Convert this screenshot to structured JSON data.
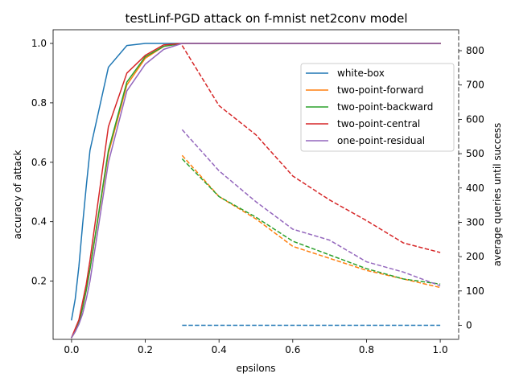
{
  "chart_data": {
    "type": "line",
    "title": "testLinf-PGD attack on f-mnist net2conv model",
    "xlabel": "epsilons",
    "ylabel": "accuracy of attack",
    "y2label": "average queries until success",
    "xlim": [
      -0.05,
      1.05
    ],
    "ylim": [
      0.004,
      1.046
    ],
    "y2lim": [
      -41,
      861
    ],
    "xticks": [
      "0.0",
      "0.2",
      "0.4",
      "0.6",
      "0.8",
      "1.0"
    ],
    "xtick_values": [
      0.0,
      0.2,
      0.4,
      0.6,
      0.8,
      1.0
    ],
    "yticks": [
      "0.2",
      "0.4",
      "0.6",
      "0.8",
      "1.0"
    ],
    "ytick_values": [
      0.2,
      0.4,
      0.6,
      0.8,
      1.0
    ],
    "y2ticks": [
      "0",
      "100",
      "200",
      "300",
      "400",
      "500",
      "600",
      "700",
      "800"
    ],
    "y2tick_values": [
      0,
      100,
      200,
      300,
      400,
      500,
      600,
      700,
      800
    ],
    "grid": false,
    "legend_position": "upper-right",
    "series": [
      {
        "name": "white-box",
        "color": "#1f77b4",
        "accuracy": {
          "x": [
            0.0,
            0.01,
            0.02,
            0.03,
            0.04,
            0.05,
            0.1,
            0.15,
            0.2,
            0.25,
            0.3,
            0.4,
            0.5,
            0.6,
            0.7,
            0.8,
            0.9,
            1.0
          ],
          "y": [
            0.07,
            0.14,
            0.25,
            0.39,
            0.52,
            0.64,
            0.92,
            0.993,
            1.0,
            1.0,
            1.0,
            1.0,
            1.0,
            1.0,
            1.0,
            1.0,
            1.0,
            1.0
          ]
        },
        "queries": {
          "x": [
            0.3,
            0.4,
            0.5,
            0.6,
            0.7,
            0.8,
            0.9,
            1.0
          ],
          "y": [
            0,
            0,
            0,
            0,
            0,
            0,
            0,
            0
          ]
        }
      },
      {
        "name": "two-point-forward",
        "color": "#ff7f0e",
        "accuracy": {
          "x": [
            0.0,
            0.01,
            0.02,
            0.03,
            0.04,
            0.05,
            0.1,
            0.15,
            0.2,
            0.25,
            0.3,
            0.4,
            0.5,
            0.6,
            0.7,
            0.8,
            0.9,
            1.0
          ],
          "y": [
            0.01,
            0.03,
            0.06,
            0.11,
            0.17,
            0.24,
            0.63,
            0.86,
            0.95,
            0.99,
            1.0,
            1.0,
            1.0,
            1.0,
            1.0,
            1.0,
            1.0,
            1.0
          ]
        },
        "queries": {
          "x": [
            0.3,
            0.4,
            0.5,
            0.6,
            0.7,
            0.8,
            0.9,
            1.0
          ],
          "y": [
            495,
            375,
            310,
            230,
            195,
            160,
            135,
            110
          ]
        }
      },
      {
        "name": "two-point-backward",
        "color": "#2ca02c",
        "accuracy": {
          "x": [
            0.0,
            0.01,
            0.02,
            0.03,
            0.04,
            0.05,
            0.1,
            0.15,
            0.2,
            0.25,
            0.3,
            0.4,
            0.5,
            0.6,
            0.7,
            0.8,
            0.9,
            1.0
          ],
          "y": [
            0.01,
            0.03,
            0.06,
            0.11,
            0.17,
            0.24,
            0.64,
            0.87,
            0.955,
            0.99,
            1.0,
            1.0,
            1.0,
            1.0,
            1.0,
            1.0,
            1.0,
            1.0
          ]
        },
        "queries": {
          "x": [
            0.3,
            0.4,
            0.5,
            0.6,
            0.7,
            0.8,
            0.9,
            1.0
          ],
          "y": [
            485,
            375,
            315,
            245,
            205,
            165,
            135,
            120
          ]
        }
      },
      {
        "name": "two-point-central",
        "color": "#d62728",
        "accuracy": {
          "x": [
            0.0,
            0.01,
            0.02,
            0.03,
            0.04,
            0.05,
            0.1,
            0.15,
            0.2,
            0.25,
            0.3,
            0.4,
            0.5,
            0.6,
            0.7,
            0.8,
            0.9,
            1.0
          ],
          "y": [
            0.01,
            0.04,
            0.07,
            0.13,
            0.19,
            0.27,
            0.72,
            0.9,
            0.96,
            0.995,
            1.0,
            1.0,
            1.0,
            1.0,
            1.0,
            1.0,
            1.0,
            1.0
          ]
        },
        "queries": {
          "x": [
            0.3,
            0.4,
            0.5,
            0.6,
            0.7,
            0.8,
            0.9,
            1.0
          ],
          "y": [
            815,
            640,
            555,
            435,
            365,
            305,
            240,
            212
          ]
        }
      },
      {
        "name": "one-point-residual",
        "color": "#9467bd",
        "accuracy": {
          "x": [
            0.0,
            0.01,
            0.02,
            0.03,
            0.04,
            0.05,
            0.1,
            0.15,
            0.2,
            0.25,
            0.3,
            0.4,
            0.5,
            0.6,
            0.7,
            0.8,
            0.9,
            1.0
          ],
          "y": [
            0.01,
            0.03,
            0.055,
            0.09,
            0.14,
            0.2,
            0.6,
            0.84,
            0.93,
            0.98,
            1.0,
            1.0,
            1.0,
            1.0,
            1.0,
            1.0,
            1.0,
            1.0
          ]
        },
        "queries": {
          "x": [
            0.3,
            0.4,
            0.5,
            0.6,
            0.7,
            0.8,
            0.9,
            1.0
          ],
          "y": [
            570,
            450,
            360,
            280,
            248,
            185,
            155,
            115
          ]
        }
      }
    ]
  }
}
